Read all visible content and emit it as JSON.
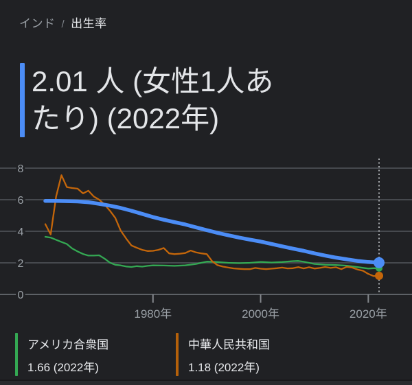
{
  "breadcrumb": {
    "parent": "インド",
    "separator": "/",
    "current": "出生率"
  },
  "headline": {
    "lines": [
      "2.01 人 (女性1人あ",
      "たり) (2022年)"
    ],
    "full_text": "2.01 人 (女性1人あたり) (2022年)",
    "accent_color": "#4c8df6"
  },
  "chart_data": {
    "type": "line",
    "title": "出生率",
    "ylabel": "",
    "xlabel": "",
    "ylim": [
      0,
      8.7
    ],
    "grid": true,
    "y_axis": {
      "ticks": [
        8,
        6,
        4,
        2,
        0
      ]
    },
    "x_axis": {
      "ticks": [
        {
          "year": 1980,
          "label": "1980年"
        },
        {
          "year": 2000,
          "label": "2000年"
        },
        {
          "year": 2020,
          "label": "2020年"
        }
      ]
    },
    "highlight": {
      "year": 2022,
      "style": "dotted-vertical-line"
    },
    "series": [
      {
        "name": "アメリカ合衆国",
        "color": "#34a853",
        "emphasized": false,
        "end_value": 1.66,
        "points": [
          [
            1960,
            3.65
          ],
          [
            1961,
            3.6
          ],
          [
            1962,
            3.46
          ],
          [
            1963,
            3.32
          ],
          [
            1964,
            3.19
          ],
          [
            1965,
            2.91
          ],
          [
            1966,
            2.72
          ],
          [
            1967,
            2.56
          ],
          [
            1968,
            2.46
          ],
          [
            1969,
            2.46
          ],
          [
            1970,
            2.48
          ],
          [
            1971,
            2.27
          ],
          [
            1972,
            2.01
          ],
          [
            1973,
            1.88
          ],
          [
            1974,
            1.84
          ],
          [
            1975,
            1.77
          ],
          [
            1976,
            1.74
          ],
          [
            1977,
            1.79
          ],
          [
            1978,
            1.76
          ],
          [
            1979,
            1.81
          ],
          [
            1980,
            1.84
          ],
          [
            1982,
            1.83
          ],
          [
            1984,
            1.81
          ],
          [
            1986,
            1.84
          ],
          [
            1988,
            1.93
          ],
          [
            1990,
            2.08
          ],
          [
            1992,
            2.05
          ],
          [
            1994,
            2.0
          ],
          [
            1996,
            1.98
          ],
          [
            1998,
            2.0
          ],
          [
            2000,
            2.06
          ],
          [
            2002,
            2.02
          ],
          [
            2004,
            2.05
          ],
          [
            2006,
            2.11
          ],
          [
            2007,
            2.12
          ],
          [
            2008,
            2.07
          ],
          [
            2009,
            2.0
          ],
          [
            2010,
            1.93
          ],
          [
            2012,
            1.88
          ],
          [
            2014,
            1.86
          ],
          [
            2016,
            1.82
          ],
          [
            2018,
            1.73
          ],
          [
            2020,
            1.64
          ],
          [
            2021,
            1.66
          ],
          [
            2022,
            1.66
          ]
        ]
      },
      {
        "name": "中華人民共和国",
        "color": "#c4660a",
        "emphasized": false,
        "end_value": 1.18,
        "points": [
          [
            1960,
            4.45
          ],
          [
            1961,
            3.8
          ],
          [
            1962,
            6.2
          ],
          [
            1963,
            7.55
          ],
          [
            1964,
            6.8
          ],
          [
            1965,
            6.74
          ],
          [
            1966,
            6.7
          ],
          [
            1967,
            6.4
          ],
          [
            1968,
            6.57
          ],
          [
            1969,
            6.2
          ],
          [
            1970,
            6.0
          ],
          [
            1971,
            5.7
          ],
          [
            1972,
            5.3
          ],
          [
            1973,
            4.85
          ],
          [
            1974,
            4.05
          ],
          [
            1975,
            3.55
          ],
          [
            1976,
            3.1
          ],
          [
            1977,
            2.95
          ],
          [
            1978,
            2.82
          ],
          [
            1979,
            2.75
          ],
          [
            1980,
            2.76
          ],
          [
            1981,
            2.82
          ],
          [
            1982,
            2.94
          ],
          [
            1983,
            2.6
          ],
          [
            1984,
            2.55
          ],
          [
            1985,
            2.58
          ],
          [
            1986,
            2.62
          ],
          [
            1987,
            2.78
          ],
          [
            1988,
            2.66
          ],
          [
            1989,
            2.6
          ],
          [
            1990,
            2.55
          ],
          [
            1991,
            2.1
          ],
          [
            1992,
            1.85
          ],
          [
            1993,
            1.76
          ],
          [
            1994,
            1.7
          ],
          [
            1995,
            1.65
          ],
          [
            1996,
            1.62
          ],
          [
            1997,
            1.6
          ],
          [
            1998,
            1.6
          ],
          [
            1999,
            1.68
          ],
          [
            2000,
            1.63
          ],
          [
            2001,
            1.6
          ],
          [
            2002,
            1.63
          ],
          [
            2003,
            1.66
          ],
          [
            2004,
            1.7
          ],
          [
            2005,
            1.65
          ],
          [
            2006,
            1.66
          ],
          [
            2007,
            1.73
          ],
          [
            2008,
            1.65
          ],
          [
            2009,
            1.72
          ],
          [
            2010,
            1.64
          ],
          [
            2011,
            1.68
          ],
          [
            2012,
            1.74
          ],
          [
            2013,
            1.68
          ],
          [
            2014,
            1.72
          ],
          [
            2015,
            1.6
          ],
          [
            2016,
            1.75
          ],
          [
            2017,
            1.7
          ],
          [
            2018,
            1.58
          ],
          [
            2019,
            1.5
          ],
          [
            2020,
            1.3
          ],
          [
            2021,
            1.16
          ],
          [
            2022,
            1.18
          ]
        ]
      },
      {
        "name": "インド",
        "color": "#4c8df6",
        "emphasized": true,
        "end_value": 2.01,
        "points": [
          [
            1960,
            5.92
          ],
          [
            1962,
            5.92
          ],
          [
            1964,
            5.91
          ],
          [
            1966,
            5.89
          ],
          [
            1968,
            5.84
          ],
          [
            1970,
            5.74
          ],
          [
            1972,
            5.62
          ],
          [
            1974,
            5.48
          ],
          [
            1976,
            5.3
          ],
          [
            1978,
            5.1
          ],
          [
            1980,
            4.9
          ],
          [
            1982,
            4.73
          ],
          [
            1984,
            4.58
          ],
          [
            1986,
            4.43
          ],
          [
            1988,
            4.25
          ],
          [
            1990,
            4.07
          ],
          [
            1992,
            3.9
          ],
          [
            1994,
            3.75
          ],
          [
            1996,
            3.6
          ],
          [
            1998,
            3.47
          ],
          [
            2000,
            3.35
          ],
          [
            2002,
            3.2
          ],
          [
            2004,
            3.05
          ],
          [
            2006,
            2.9
          ],
          [
            2008,
            2.76
          ],
          [
            2010,
            2.6
          ],
          [
            2012,
            2.46
          ],
          [
            2014,
            2.33
          ],
          [
            2016,
            2.22
          ],
          [
            2018,
            2.12
          ],
          [
            2020,
            2.05
          ],
          [
            2022,
            2.01
          ]
        ]
      }
    ],
    "colors": {
      "background": "#202124",
      "gridline": "#46494e",
      "axis_line": "#5d6166",
      "tick": "#84888d",
      "tick_label": "#9aa0a6",
      "dotted_line": "#b5b8bc"
    }
  },
  "legend": [
    {
      "country": "アメリカ合衆国",
      "value_text": "1.66 (2022年)",
      "color": "#34a853"
    },
    {
      "country": "中華人民共和国",
      "value_text": "1.18 (2022年)",
      "color": "#b5610a"
    }
  ]
}
